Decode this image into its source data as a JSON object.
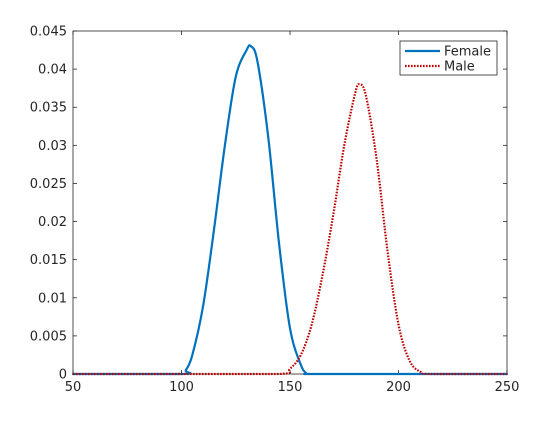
{
  "chart_data": {
    "type": "line",
    "title": "",
    "xlabel": "",
    "ylabel": "",
    "xlim": [
      50,
      250
    ],
    "ylim": [
      0,
      0.045
    ],
    "x_ticks": [
      "50",
      "100",
      "150",
      "200",
      "250"
    ],
    "y_ticks": [
      "0",
      "0.005",
      "0.01",
      "0.015",
      "0.02",
      "0.025",
      "0.03",
      "0.035",
      "0.04",
      "0.045"
    ],
    "grid": false,
    "legend_position": "top-right",
    "series": [
      {
        "name": "Female",
        "color": "#0072BD",
        "style": "solid",
        "x": [
          50,
          100,
          102,
          105,
          110,
          115,
          120,
          125,
          130,
          132,
          135,
          140,
          145,
          150,
          155,
          158,
          160,
          200,
          250
        ],
        "y": [
          0,
          0,
          0.0005,
          0.0025,
          0.009,
          0.019,
          0.03,
          0.039,
          0.0425,
          0.043,
          0.041,
          0.031,
          0.017,
          0.006,
          0.0012,
          0,
          0,
          0,
          0
        ]
      },
      {
        "name": "Male",
        "color": "#C00000",
        "style": "dotted",
        "x": [
          50,
          100,
          145,
          150,
          155,
          160,
          165,
          170,
          175,
          180,
          182,
          185,
          190,
          195,
          200,
          205,
          210,
          215,
          250
        ],
        "y": [
          0,
          0,
          0,
          0.0007,
          0.0025,
          0.0065,
          0.013,
          0.021,
          0.03,
          0.0368,
          0.038,
          0.0365,
          0.028,
          0.016,
          0.0065,
          0.0018,
          0.0003,
          0,
          0
        ]
      }
    ]
  }
}
